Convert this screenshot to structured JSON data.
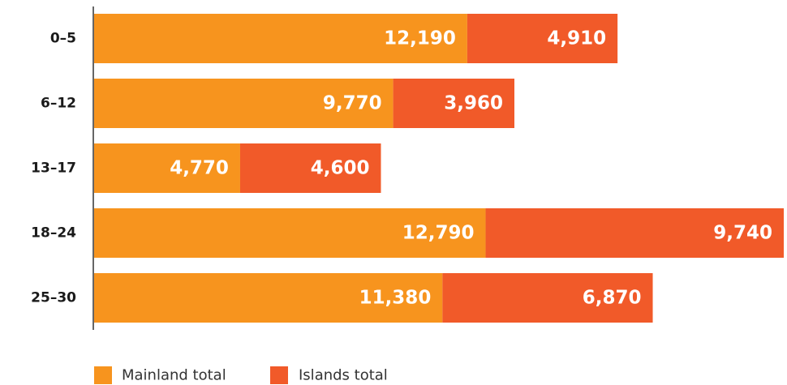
{
  "chart_data": {
    "type": "bar",
    "orientation": "horizontal",
    "stacked": true,
    "categories": [
      "0–5",
      "6–12",
      "13–17",
      "18–24",
      "25–30"
    ],
    "series": [
      {
        "name": "Mainland total",
        "color": "#F7941E",
        "values": [
          12190,
          9770,
          4770,
          12790,
          11380
        ],
        "labels": [
          "12,190",
          "9,770",
          "4,770",
          "12,790",
          "11,380"
        ]
      },
      {
        "name": "Islands total",
        "color": "#F15A29",
        "values": [
          4910,
          3960,
          4600,
          9740,
          6870
        ],
        "labels": [
          "4,910",
          "3,960",
          "4,600",
          "9,740",
          "6,870"
        ]
      }
    ],
    "title": "",
    "xlabel": "",
    "ylabel": "",
    "xlim": [
      0,
      22530
    ],
    "grid": false,
    "legend": "bottom-left",
    "axis_color": "#333333"
  }
}
